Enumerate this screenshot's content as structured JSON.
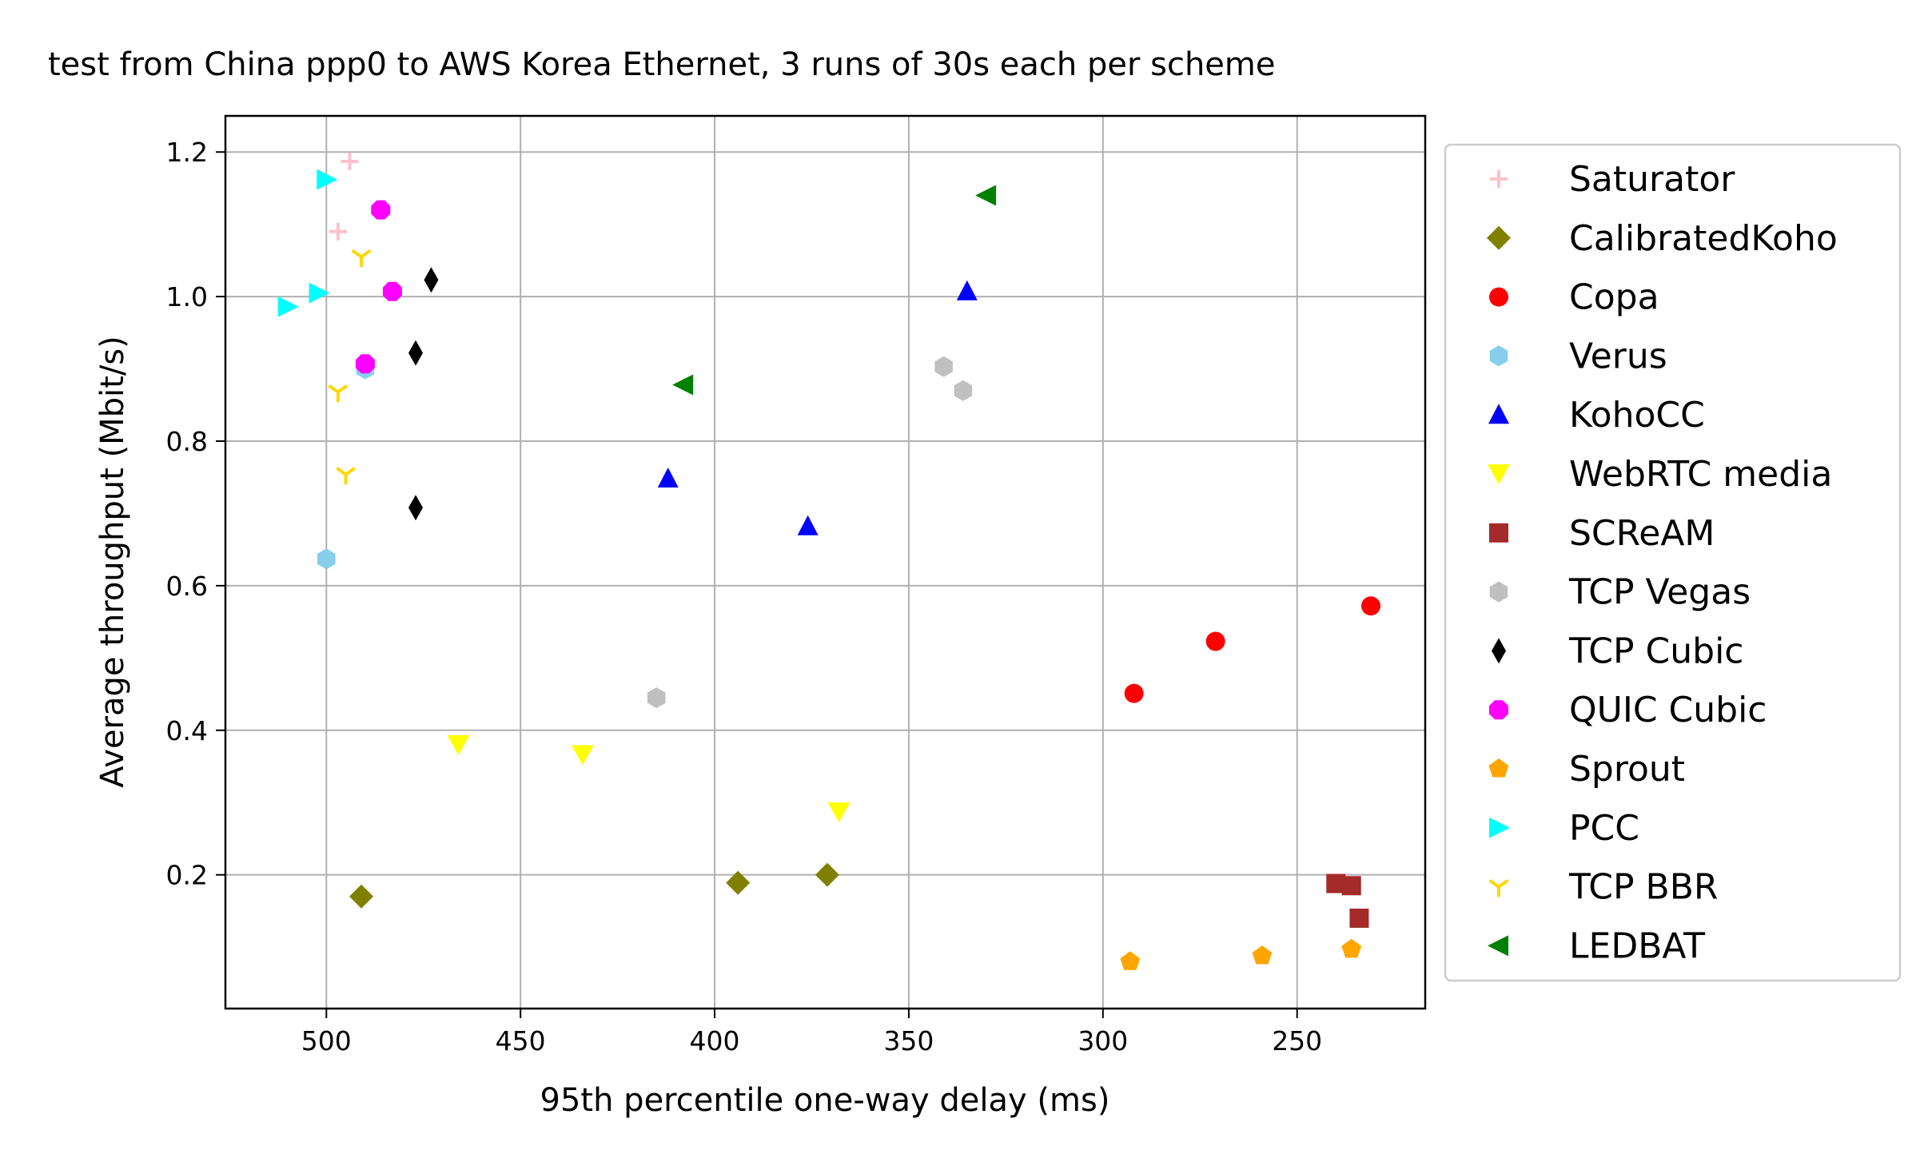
{
  "chart_data": {
    "type": "scatter",
    "title": "test from China ppp0 to AWS Korea Ethernet, 3 runs of 30s each per scheme",
    "xlabel": "95th percentile one-way delay (ms)",
    "ylabel": "Average throughput (Mbit/s)",
    "xlim": [
      526,
      217
    ],
    "ylim": [
      0.015,
      1.25
    ],
    "x_inverted": true,
    "grid": true,
    "legend_position": "outside-right",
    "xticks": [
      500,
      450,
      400,
      350,
      300,
      250
    ],
    "xtick_labels": [
      "500",
      "450",
      "400",
      "350",
      "300",
      "250"
    ],
    "yticks": [
      0.2,
      0.4,
      0.6,
      0.8,
      1.0,
      1.2
    ],
    "ytick_labels": [
      "0.2",
      "0.4",
      "0.6",
      "0.8",
      "1.0",
      "1.2"
    ],
    "series": [
      {
        "name": "Saturator",
        "color": "#FFC0CB",
        "marker": "plus",
        "x": [
          494,
          497
        ],
        "y": [
          1.187,
          1.09
        ]
      },
      {
        "name": "CalibratedKoho",
        "color": "#808000",
        "marker": "diamond",
        "x": [
          491,
          394,
          371
        ],
        "y": [
          0.17,
          0.189,
          0.2
        ]
      },
      {
        "name": "Copa",
        "color": "#FF0000",
        "marker": "circle",
        "x": [
          231,
          271,
          292
        ],
        "y": [
          0.572,
          0.523,
          0.451
        ]
      },
      {
        "name": "Verus",
        "color": "#87CEEB",
        "marker": "hexagon",
        "x": [
          490,
          500
        ],
        "y": [
          0.9,
          0.637
        ]
      },
      {
        "name": "KohoCC",
        "color": "#0000FF",
        "marker": "triangle-up",
        "x": [
          335,
          412,
          376
        ],
        "y": [
          1.007,
          0.748,
          0.682
        ]
      },
      {
        "name": "WebRTC media",
        "color": "#FFFF00",
        "marker": "triangle-down",
        "x": [
          466,
          434,
          368
        ],
        "y": [
          0.38,
          0.366,
          0.287
        ]
      },
      {
        "name": "SCReAM",
        "color": "#A52A2A",
        "marker": "square",
        "x": [
          240,
          236,
          234
        ],
        "y": [
          0.188,
          0.185,
          0.14
        ]
      },
      {
        "name": "TCP Vegas",
        "color": "#C0C0C0",
        "marker": "hexagon",
        "x": [
          341,
          336,
          415
        ],
        "y": [
          0.903,
          0.87,
          0.445
        ]
      },
      {
        "name": "TCP Cubic",
        "color": "#000000",
        "marker": "thin-diamond",
        "x": [
          473,
          477,
          477
        ],
        "y": [
          1.023,
          0.922,
          0.708
        ]
      },
      {
        "name": "QUIC Cubic",
        "color": "#FF00FF",
        "marker": "octagon",
        "x": [
          486,
          483,
          490
        ],
        "y": [
          1.12,
          1.007,
          0.907
        ]
      },
      {
        "name": "Sprout",
        "color": "#FFA500",
        "marker": "pentagon",
        "x": [
          293,
          259,
          236
        ],
        "y": [
          0.08,
          0.088,
          0.097
        ]
      },
      {
        "name": "PCC",
        "color": "#00FFFF",
        "marker": "triangle-right",
        "x": [
          500,
          502,
          510
        ],
        "y": [
          1.162,
          1.005,
          0.986
        ]
      },
      {
        "name": "TCP BBR",
        "color": "#FFD700",
        "marker": "tri-down",
        "x": [
          491,
          497,
          495
        ],
        "y": [
          1.055,
          0.868,
          0.754
        ]
      },
      {
        "name": "LEDBAT",
        "color": "#008000",
        "marker": "triangle-left",
        "x": [
          330,
          408
        ],
        "y": [
          1.14,
          0.878
        ]
      }
    ]
  }
}
